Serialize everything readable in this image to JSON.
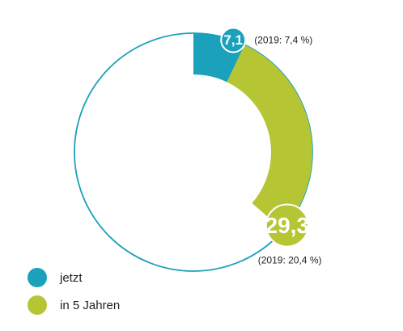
{
  "chart_data": {
    "type": "pie",
    "style": "donut",
    "series": [
      {
        "name": "jetzt",
        "value": 7.1,
        "value_label": "7,1",
        "prior_label": "(2019: 7,4 %)",
        "color": "#1ba1bb"
      },
      {
        "name": "in 5 Jahren",
        "value": 29.3,
        "value_label": "29,3",
        "prior_label": "(2019: 20,4 %)",
        "color": "#b6c533"
      }
    ],
    "total": 100,
    "outline_color": "#1ba1bb",
    "legend_position": "bottom-left"
  }
}
